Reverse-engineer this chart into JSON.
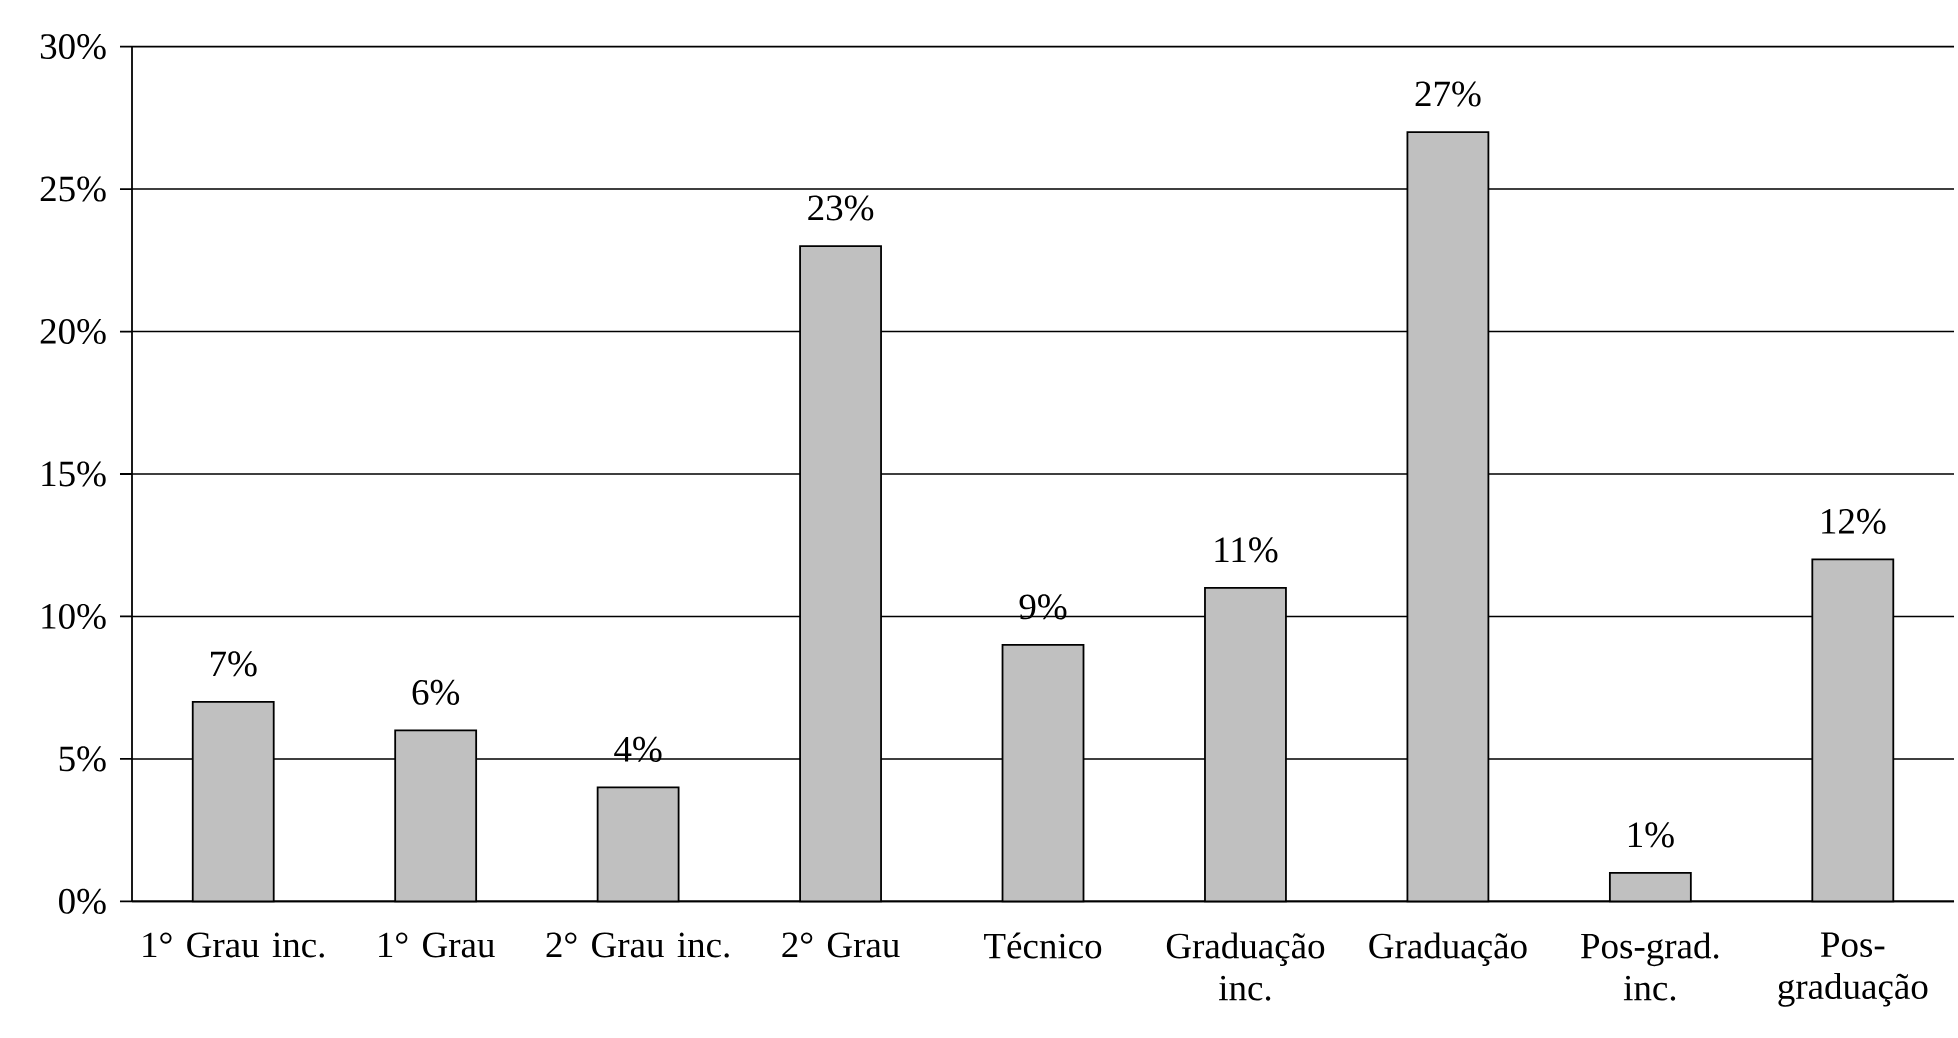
{
  "chart_data": {
    "type": "bar",
    "categories": [
      "1° Grau inc.",
      "1° Grau",
      "2° Grau inc.",
      "2° Grau",
      "Técnico",
      "Graduação inc.",
      "Graduação",
      "Pos-grad. inc.",
      "Pos-graduação"
    ],
    "values": [
      7,
      6,
      4,
      23,
      9,
      11,
      27,
      1,
      12
    ],
    "value_labels": [
      "7%",
      "6%",
      "4%",
      "23%",
      "9%",
      "11%",
      "27%",
      "1%",
      "12%"
    ],
    "color": "#c0c0c0",
    "ylim": [
      0,
      30
    ],
    "yticks": [
      {
        "value": 0,
        "label": "0%"
      },
      {
        "value": 5,
        "label": "5%"
      },
      {
        "value": 10,
        "label": "10%"
      },
      {
        "value": 15,
        "label": "15%"
      },
      {
        "value": 20,
        "label": "20%"
      },
      {
        "value": 25,
        "label": "25%"
      },
      {
        "value": 30,
        "label": "30%"
      }
    ],
    "grid": "y"
  }
}
